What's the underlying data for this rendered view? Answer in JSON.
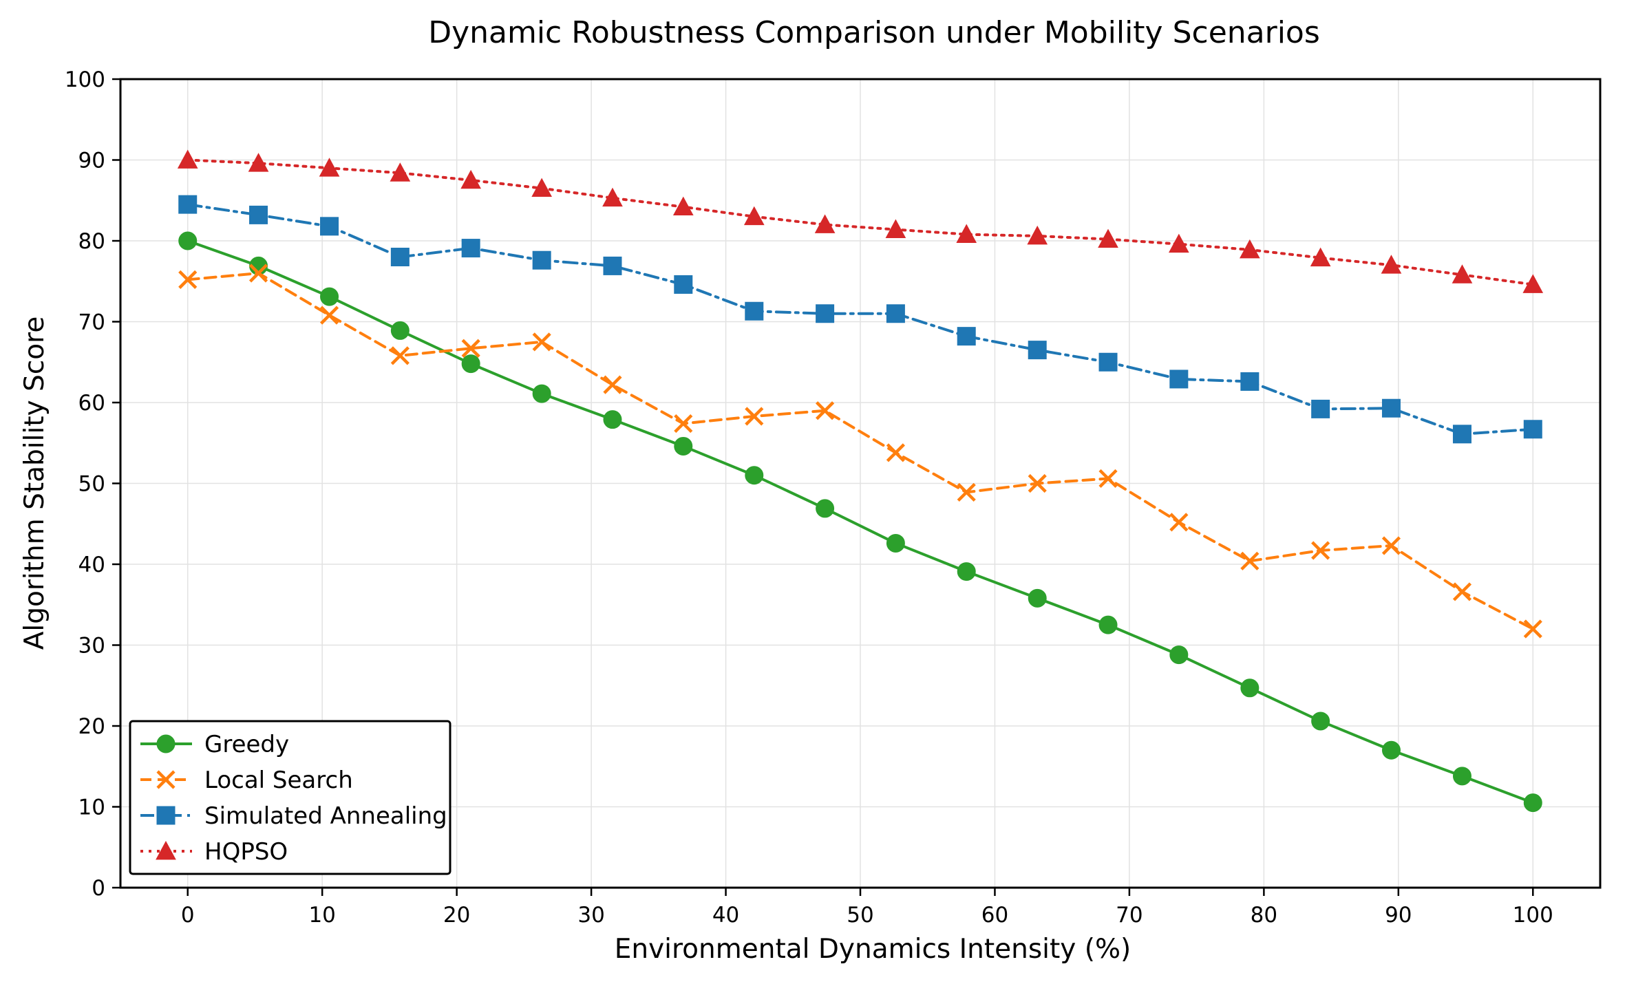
{
  "chart_data": {
    "type": "line",
    "title": "Dynamic Robustness Comparison under Mobility Scenarios",
    "xlabel": "Environmental Dynamics Intensity (%)",
    "ylabel": "Algorithm Stability Score",
    "xlim": [
      -5,
      105
    ],
    "ylim": [
      0,
      100
    ],
    "xticks": [
      0,
      10,
      20,
      30,
      40,
      50,
      60,
      70,
      80,
      90,
      100
    ],
    "yticks": [
      0,
      10,
      20,
      30,
      40,
      50,
      60,
      70,
      80,
      90,
      100
    ],
    "grid": true,
    "legend_position": "lower-left",
    "x": [
      0,
      5.26,
      10.53,
      15.79,
      21.05,
      26.32,
      31.58,
      36.84,
      42.11,
      47.37,
      52.63,
      57.89,
      63.16,
      68.42,
      73.68,
      78.95,
      84.21,
      89.47,
      94.74,
      100
    ],
    "series": [
      {
        "name": "Greedy",
        "color": "#2ca02c",
        "marker": "circle",
        "linestyle": "solid",
        "values": [
          80.0,
          76.9,
          73.1,
          68.9,
          64.8,
          61.1,
          57.9,
          54.6,
          51.0,
          46.9,
          42.6,
          39.1,
          35.8,
          32.5,
          28.8,
          24.7,
          20.6,
          17.0,
          13.8,
          10.5
        ]
      },
      {
        "name": "Local Search",
        "color": "#ff7f0e",
        "marker": "x",
        "linestyle": "dashed",
        "values": [
          75.2,
          76.0,
          70.8,
          65.8,
          66.7,
          67.5,
          62.2,
          57.4,
          58.3,
          59.0,
          53.8,
          48.9,
          50.0,
          50.6,
          45.2,
          40.4,
          41.7,
          42.3,
          36.6,
          32.0
        ]
      },
      {
        "name": "Simulated Annealing",
        "color": "#1f77b4",
        "marker": "square",
        "linestyle": "dashdot",
        "values": [
          84.5,
          83.2,
          81.8,
          78.0,
          79.1,
          77.6,
          76.9,
          74.6,
          71.3,
          71.0,
          71.0,
          68.2,
          66.5,
          65.0,
          62.9,
          62.6,
          59.2,
          59.3,
          56.1,
          56.7
        ]
      },
      {
        "name": "HQPSO",
        "color": "#d62728",
        "marker": "triangle",
        "linestyle": "dotted",
        "values": [
          90.0,
          89.6,
          89.0,
          88.4,
          87.5,
          86.5,
          85.3,
          84.2,
          83.0,
          82.0,
          81.4,
          80.8,
          80.6,
          80.2,
          79.6,
          78.9,
          77.9,
          77.0,
          75.8,
          74.6
        ]
      }
    ]
  }
}
